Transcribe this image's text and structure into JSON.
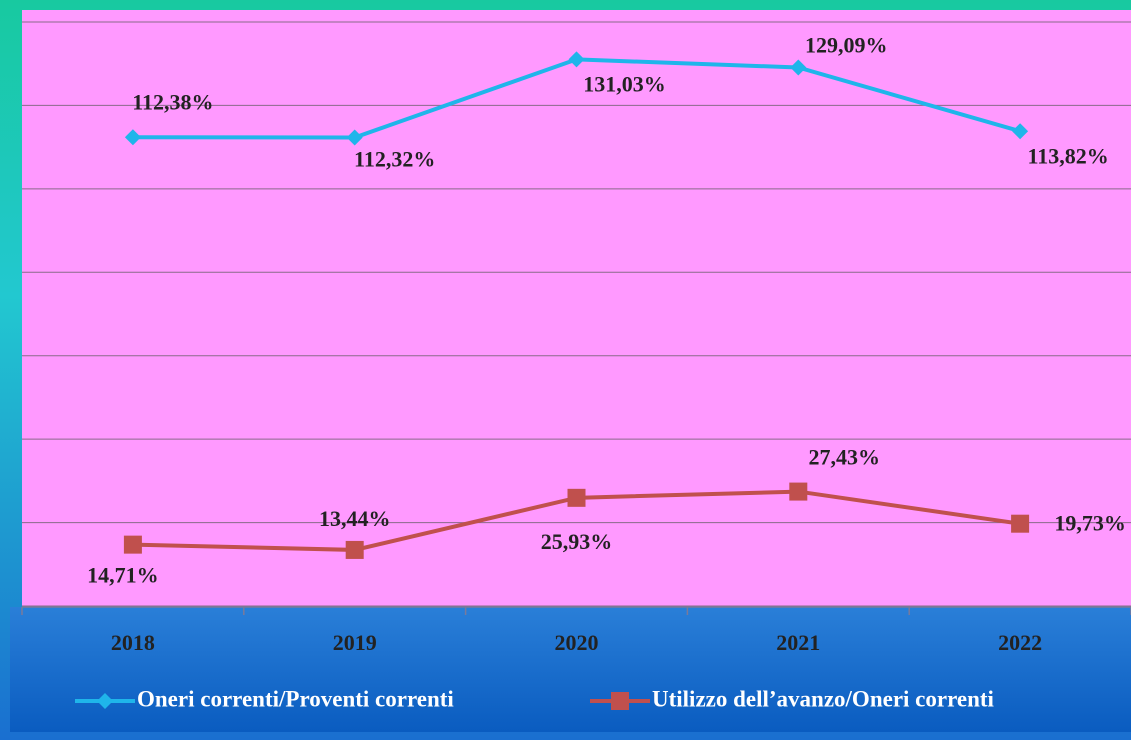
{
  "chart_data": {
    "type": "line",
    "categories": [
      "2018",
      "2019",
      "2020",
      "2021",
      "2022"
    ],
    "series": [
      {
        "name": "Oneri correnti/Proventi correnti",
        "color": "#1fb5ea",
        "marker": "diamond",
        "values": [
          112.38,
          112.32,
          131.03,
          129.09,
          113.82
        ],
        "value_labels": [
          "112,38%",
          "112,32%",
          "131,03%",
          "129,09%",
          "113,82%"
        ]
      },
      {
        "name": "Utilizzo dell’avanzo/Oneri correnti",
        "color": "#c0504d",
        "marker": "square",
        "values": [
          14.71,
          13.44,
          25.93,
          27.43,
          19.73
        ],
        "value_labels": [
          "14,71%",
          "13,44%",
          "25,93%",
          "27,43%",
          "19,73%"
        ]
      }
    ],
    "ylim": [
      0,
      140
    ],
    "yticks": [
      0,
      20,
      40,
      60,
      80,
      100,
      120,
      140
    ],
    "grid": true,
    "legend": "bottom",
    "background": "#ff99ff"
  }
}
